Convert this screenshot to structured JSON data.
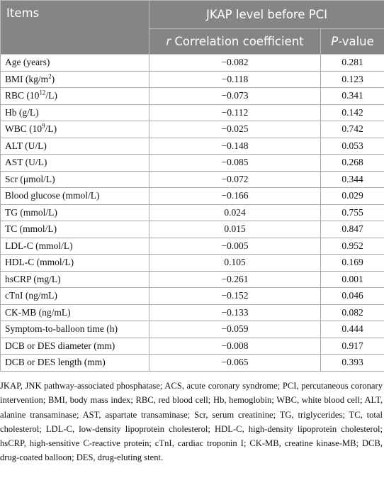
{
  "table": {
    "header": {
      "items": "Items",
      "group": "JKAP level before PCI",
      "r_col": [
        "r",
        " Correlation coefficient"
      ],
      "p_col": [
        "P",
        "-value"
      ]
    },
    "rows": [
      [
        [
          "Age (years)"
        ],
        "−0.082",
        "0.281"
      ],
      [
        [
          "BMI (kg/m",
          "2",
          ")"
        ],
        "−0.118",
        "0.123"
      ],
      [
        [
          "RBC (10",
          "12",
          "/L)"
        ],
        "−0.073",
        "0.341"
      ],
      [
        [
          "Hb (g/L)"
        ],
        "−0.112",
        "0.142"
      ],
      [
        [
          "WBC (10",
          "9",
          "/L)"
        ],
        "−0.025",
        "0.742"
      ],
      [
        [
          "ALT (U/L)"
        ],
        "−0.148",
        "0.053"
      ],
      [
        [
          "AST (U/L)"
        ],
        "−0.085",
        "0.268"
      ],
      [
        [
          "Scr (μmol/L)"
        ],
        "−0.072",
        "0.344"
      ],
      [
        [
          "Blood glucose (mmol/L)"
        ],
        "−0.166",
        "0.029"
      ],
      [
        [
          "TG (mmol/L)"
        ],
        "0.024",
        "0.755"
      ],
      [
        [
          "TC (mmol/L)"
        ],
        "0.015",
        "0.847"
      ],
      [
        [
          "LDL-C (mmol/L)"
        ],
        "−0.005",
        "0.952"
      ],
      [
        [
          "HDL-C (mmol/L)"
        ],
        "0.105",
        "0.169"
      ],
      [
        [
          "hsCRP (mg/L)"
        ],
        "−0.261",
        "0.001"
      ],
      [
        [
          "cTnI (ng/mL)"
        ],
        "−0.152",
        "0.046"
      ],
      [
        [
          "CK-MB (ng/mL)"
        ],
        "−0.133",
        "0.082"
      ],
      [
        [
          "Symptom-to-balloon time (h)"
        ],
        "−0.059",
        "0.444"
      ],
      [
        [
          "DCB or DES diameter (mm)"
        ],
        "−0.008",
        "0.917"
      ],
      [
        [
          "DCB or DES length (mm)"
        ],
        "−0.065",
        "0.393"
      ]
    ]
  },
  "footnote": "JKAP, JNK pathway-associated phosphatase; ACS, acute coronary syndrome; PCI, percutaneous coronary intervention; BMI, body mass index; RBC, red blood cell; Hb, hemoglobin; WBC, white blood cell; ALT, alanine transaminase; AST, aspartate transaminase; Scr, serum creatinine; TG, triglycerides; TC, total cholesterol; LDL-C, low-density lipoprotein cholesterol; HDL-C, high-density lipoprotein cholesterol; hsCRP, high-sensitive C-reactive protein; cTnI, cardiac troponin I; CK-MB, creatine kinase-MB; DCB, drug-coated balloon; DES, drug-eluting stent."
}
